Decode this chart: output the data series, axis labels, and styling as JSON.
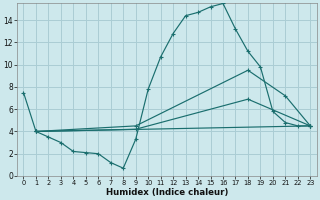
{
  "xlabel": "Humidex (Indice chaleur)",
  "bg_color": "#cde8ec",
  "grid_color": "#aacdd4",
  "line_color": "#1a6e6e",
  "xlim": [
    -0.5,
    23.5
  ],
  "ylim": [
    0,
    15.5
  ],
  "xticks": [
    0,
    1,
    2,
    3,
    4,
    5,
    6,
    7,
    8,
    9,
    10,
    11,
    12,
    13,
    14,
    15,
    16,
    17,
    18,
    19,
    20,
    21,
    22,
    23
  ],
  "yticks": [
    0,
    2,
    4,
    6,
    8,
    10,
    12,
    14
  ],
  "line1_x": [
    0,
    1,
    2,
    3,
    4,
    5,
    6,
    7,
    8,
    9,
    10,
    11,
    12,
    13,
    14,
    15,
    16,
    17,
    18,
    19,
    20,
    21,
    22,
    23
  ],
  "line1_y": [
    7.5,
    4.0,
    3.5,
    3.0,
    2.2,
    2.1,
    2.0,
    1.2,
    0.7,
    3.3,
    7.8,
    10.7,
    12.8,
    14.4,
    14.7,
    15.2,
    15.5,
    13.2,
    11.2,
    9.8,
    5.8,
    4.8,
    4.5,
    4.5
  ],
  "line2_x": [
    1,
    9,
    18,
    21,
    23
  ],
  "line2_y": [
    4.0,
    4.5,
    9.5,
    7.2,
    4.5
  ],
  "line3_x": [
    1,
    9,
    18,
    23
  ],
  "line3_y": [
    4.0,
    4.2,
    6.9,
    4.5
  ],
  "line4_x": [
    1,
    23
  ],
  "line4_y": [
    4.0,
    4.5
  ]
}
